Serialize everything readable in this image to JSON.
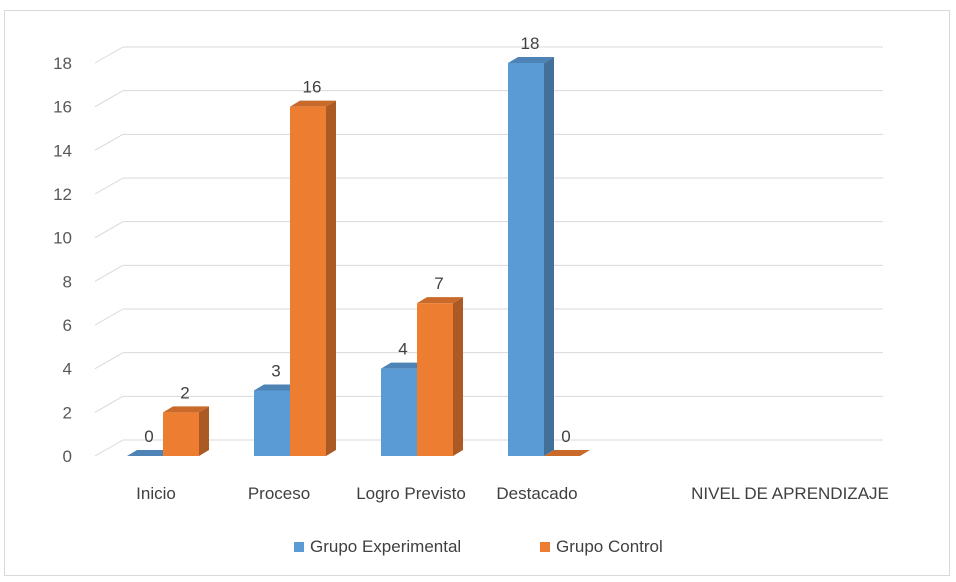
{
  "chart_data": {
    "type": "bar",
    "categories": [
      "Inicio",
      "Proceso",
      "Logro Previsto",
      "Destacado"
    ],
    "xlabel": "NIVEL DE APRENDIZAJE",
    "ylim": [
      0,
      18
    ],
    "yticks": [
      0,
      2,
      4,
      6,
      8,
      10,
      12,
      14,
      16,
      18
    ],
    "series": [
      {
        "name": "Grupo Experimental",
        "values": [
          0,
          3,
          4,
          18
        ],
        "color": "#5b9bd5"
      },
      {
        "name": "Grupo Control",
        "values": [
          2,
          16,
          7,
          0
        ],
        "color": "#ed7d31"
      }
    ],
    "data_labels": true,
    "gridlines": true,
    "legend_position": "bottom",
    "style": "3d-clustered-column"
  }
}
